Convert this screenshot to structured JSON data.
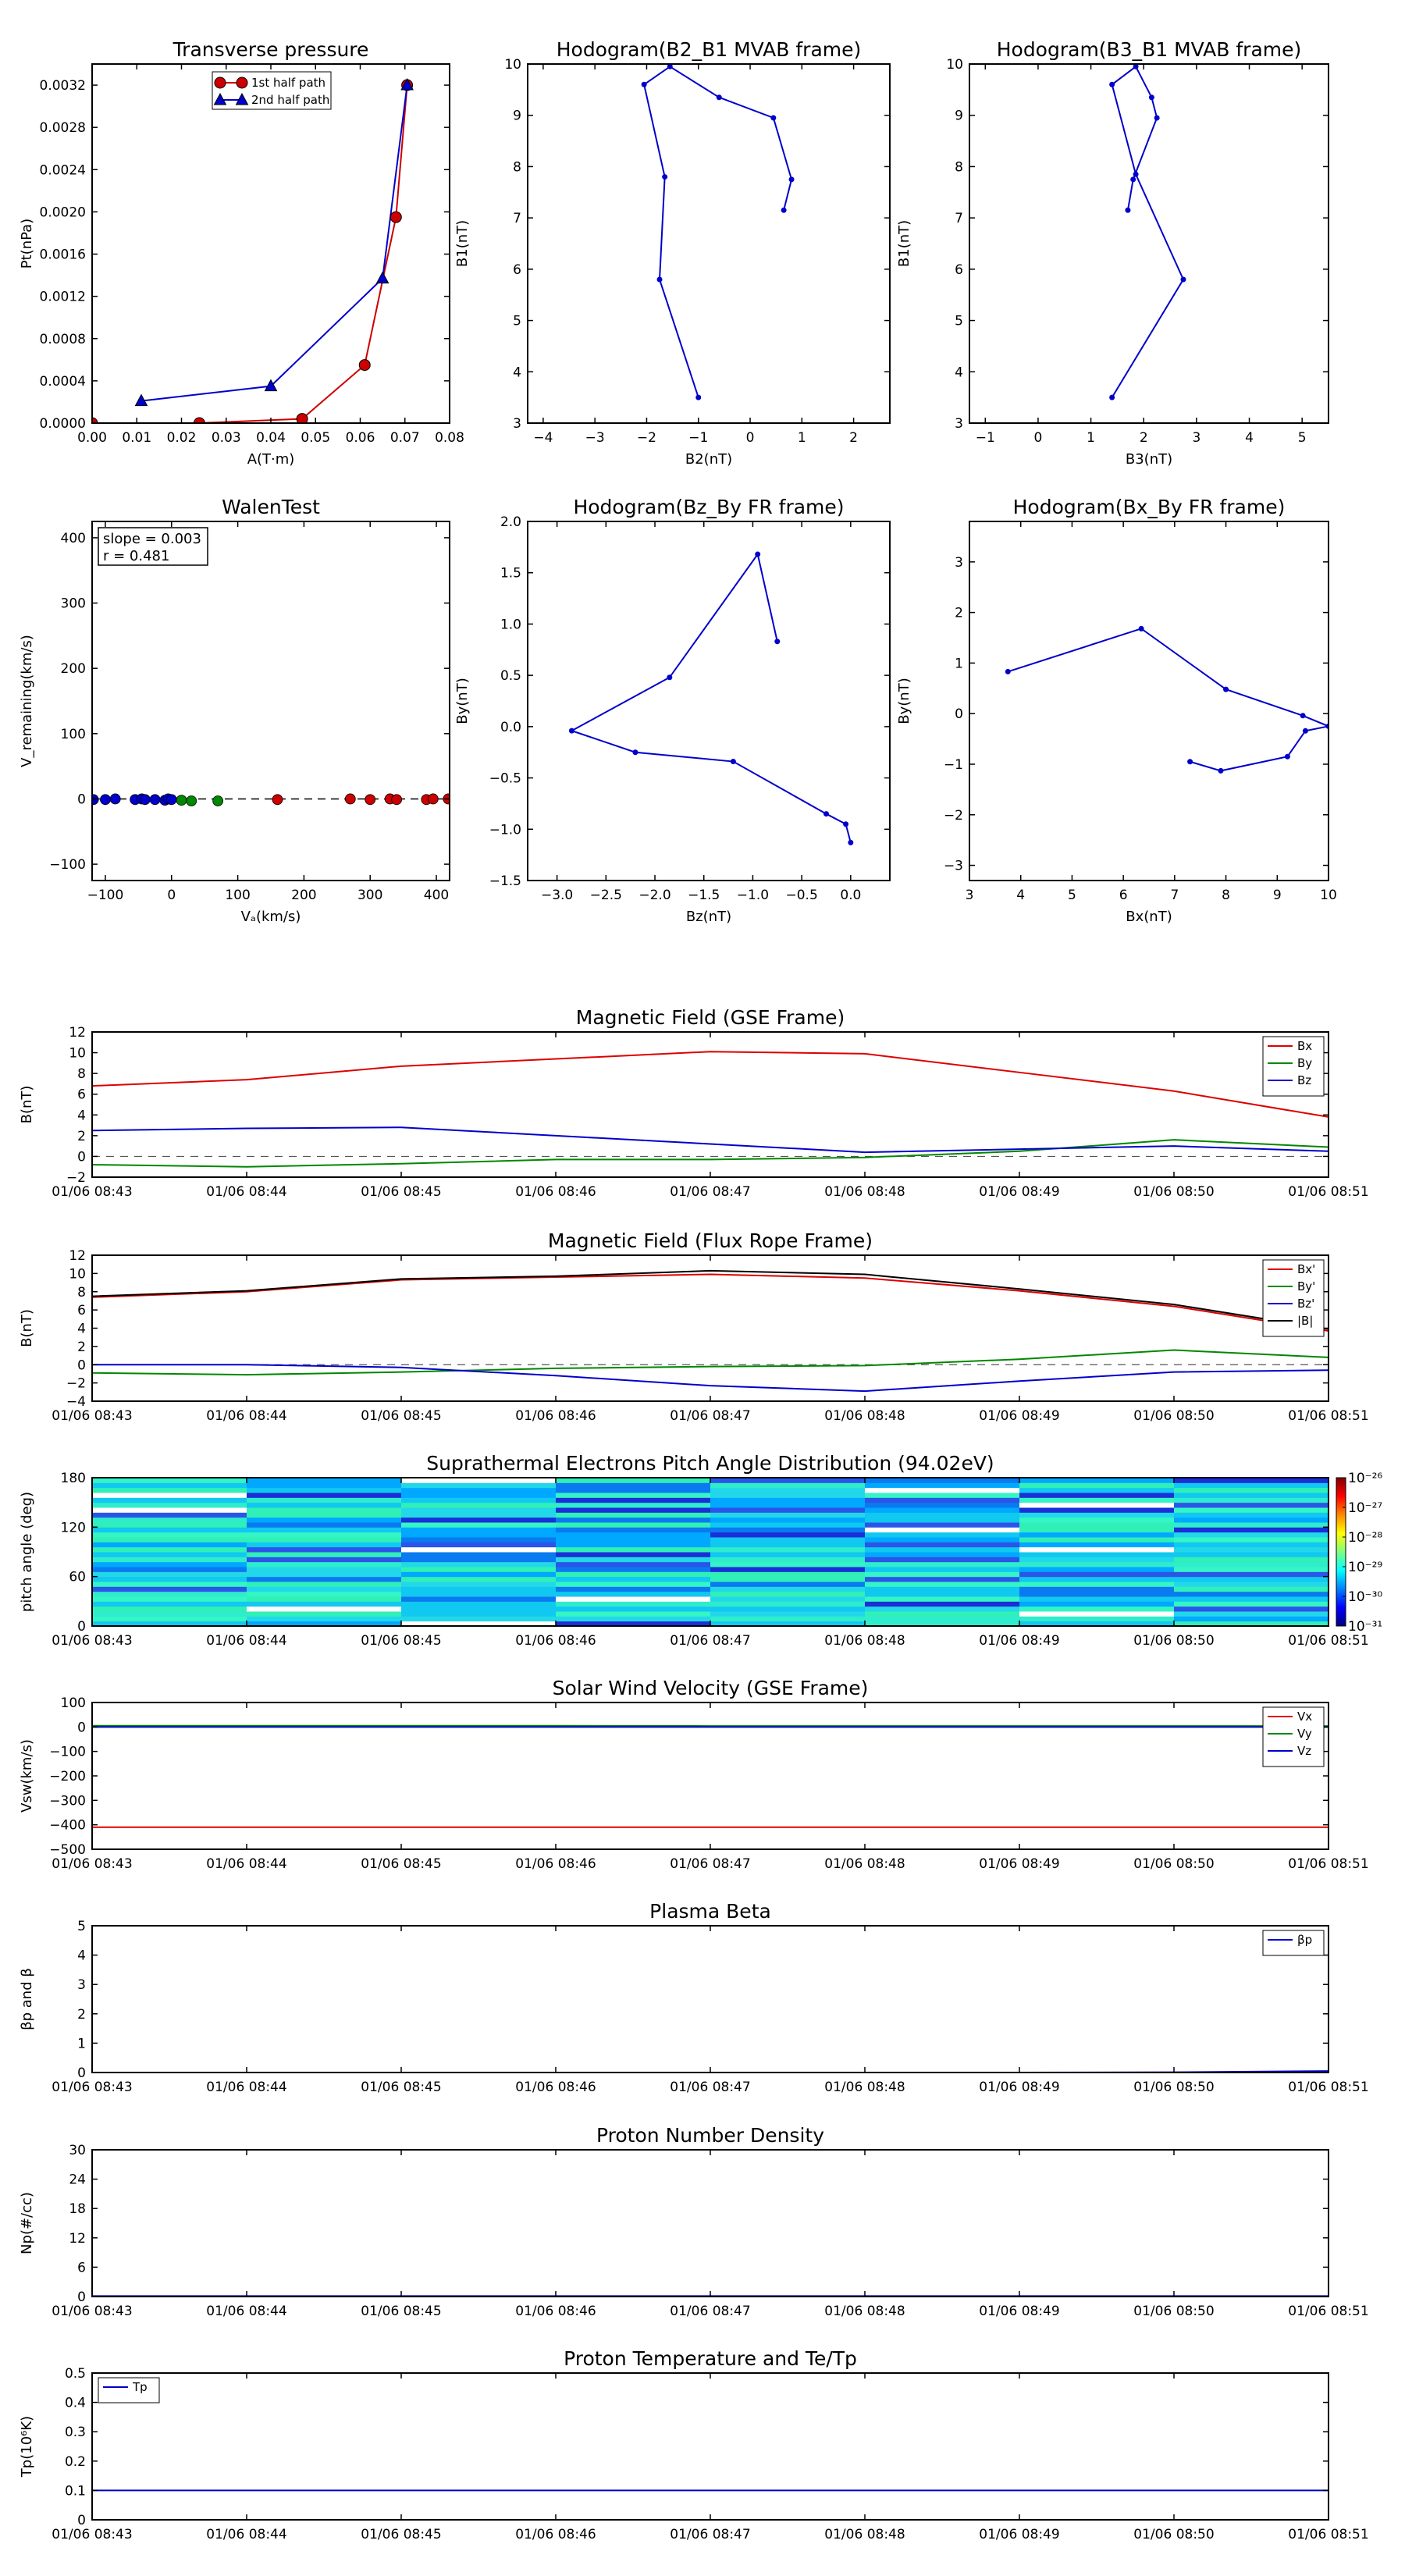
{
  "chart_data": [
    {
      "id": "transverse-pressure",
      "type": "line",
      "title": "Transverse pressure",
      "xlabel": "A(T·m)",
      "ylabel": "Pt(nPa)",
      "xlim": [
        0,
        0.08
      ],
      "ylim": [
        0,
        0.0034
      ],
      "xticks": [
        0,
        0.01,
        0.02,
        0.03,
        0.04,
        0.05,
        0.06,
        0.07,
        0.08
      ],
      "xtick_labels": [
        "0.00",
        "0.01",
        "0.02",
        "0.03",
        "0.04",
        "0.05",
        "0.06",
        "0.07",
        "0.08"
      ],
      "yticks": [
        0,
        0.0004,
        0.0008,
        0.0012,
        0.0016,
        0.002,
        0.0024,
        0.0028,
        0.0032
      ],
      "ytick_labels": [
        "0.0000",
        "0.0004",
        "0.0008",
        "0.0012",
        "0.0016",
        "0.0020",
        "0.0024",
        "0.0028",
        "0.0032"
      ],
      "legend": "top-center",
      "series": [
        {
          "name": "1st half path",
          "color": "#cc0000",
          "marker": "circle",
          "x": [
            0.0,
            0.024,
            0.047,
            0.061,
            0.068,
            0.0705
          ],
          "y": [
            0.0,
            0.0,
            4e-05,
            0.00055,
            0.00195,
            0.0032
          ]
        },
        {
          "name": "2nd half path",
          "color": "#0000cc",
          "marker": "triangle",
          "x": [
            0.011,
            0.04,
            0.065,
            0.0705
          ],
          "y": [
            0.00021,
            0.00035,
            0.00137,
            0.0032
          ]
        }
      ]
    },
    {
      "id": "hodogram-b2-b1",
      "type": "line",
      "title": "Hodogram(B2_B1 MVAB frame)",
      "xlabel": "B2(nT)",
      "ylabel": "B1(nT)",
      "xlim": [
        -4.3,
        2.7
      ],
      "ylim": [
        3,
        10
      ],
      "xticks": [
        -4,
        -3,
        -2,
        -1,
        0,
        1,
        2
      ],
      "xtick_labels": [
        "−4",
        "−3",
        "−2",
        "−1",
        "0",
        "1",
        "2"
      ],
      "yticks": [
        3,
        4,
        5,
        6,
        7,
        8,
        9,
        10
      ],
      "ytick_labels": [
        "3",
        "4",
        "5",
        "6",
        "7",
        "8",
        "9",
        "10"
      ],
      "series": [
        {
          "color": "#0000cc",
          "marker": "dot",
          "x": [
            -1.0,
            -1.75,
            -1.65,
            -2.05,
            -1.55,
            -0.6,
            0.45,
            0.8,
            0.65
          ],
          "y": [
            3.5,
            5.8,
            7.8,
            9.6,
            9.95,
            9.35,
            8.95,
            7.75,
            7.15
          ]
        }
      ]
    },
    {
      "id": "hodogram-b3-b1",
      "type": "line",
      "title": "Hodogram(B3_B1 MVAB frame)",
      "xlabel": "B3(nT)",
      "ylabel": "B1(nT)",
      "xlim": [
        -1.3,
        5.5
      ],
      "ylim": [
        3,
        10
      ],
      "xticks": [
        -1,
        0,
        1,
        2,
        3,
        4,
        5
      ],
      "xtick_labels": [
        "−1",
        "0",
        "1",
        "2",
        "3",
        "4",
        "5"
      ],
      "yticks": [
        3,
        4,
        5,
        6,
        7,
        8,
        9,
        10
      ],
      "ytick_labels": [
        "3",
        "4",
        "5",
        "6",
        "7",
        "8",
        "9",
        "10"
      ],
      "series": [
        {
          "color": "#0000cc",
          "marker": "dot",
          "x": [
            1.4,
            2.75,
            1.85,
            1.4,
            1.85,
            2.15,
            2.25,
            1.8,
            1.7
          ],
          "y": [
            3.5,
            5.8,
            7.85,
            9.6,
            9.95,
            9.35,
            8.95,
            7.75,
            7.15
          ]
        }
      ]
    },
    {
      "id": "walen-test",
      "type": "scatter",
      "title": "WalenTest",
      "xlabel": "Vₐ(km/s)",
      "ylabel": "V_remaining(km/s)",
      "xlim": [
        -120,
        420
      ],
      "ylim": [
        -125,
        425
      ],
      "xticks": [
        -100,
        0,
        100,
        200,
        300,
        400
      ],
      "xtick_labels": [
        "−100",
        "0",
        "100",
        "200",
        "300",
        "400"
      ],
      "yticks": [
        -100,
        0,
        100,
        200,
        300,
        400
      ],
      "ytick_labels": [
        "−100",
        "0",
        "100",
        "200",
        "300",
        "400"
      ],
      "annotation": {
        "line1": "slope = 0.003",
        "line2": "r = 0.481"
      },
      "fit_line": {
        "x": [
          -120,
          420
        ],
        "y": [
          0,
          0
        ]
      },
      "series": [
        {
          "color": "#0000cc",
          "x": [
            -118,
            -100,
            -85,
            -55,
            -45,
            -40,
            -25,
            -10,
            -5,
            0
          ],
          "y": [
            -1,
            -1,
            0,
            -1,
            0,
            -1,
            -1,
            -2,
            0,
            -1
          ]
        },
        {
          "color": "#008800",
          "x": [
            15,
            30,
            70
          ],
          "y": [
            -2,
            -3,
            -3
          ]
        },
        {
          "color": "#cc0000",
          "x": [
            160,
            270,
            300,
            330,
            340,
            385,
            395,
            418
          ],
          "y": [
            -1,
            0,
            -1,
            0,
            -1,
            -1,
            0,
            0
          ]
        }
      ]
    },
    {
      "id": "hodogram-bz-by",
      "type": "line",
      "title": "Hodogram(Bz_By FR frame)",
      "xlabel": "Bz(nT)",
      "ylabel": "By(nT)",
      "xlim": [
        -3.3,
        0.4
      ],
      "ylim": [
        -1.5,
        2.0
      ],
      "xticks": [
        -3.0,
        -2.5,
        -2.0,
        -1.5,
        -1.0,
        -0.5,
        0.0
      ],
      "xtick_labels": [
        "−3.0",
        "−2.5",
        "−2.0",
        "−1.5",
        "−1.0",
        "−0.5",
        "0.0"
      ],
      "yticks": [
        -1.5,
        -1.0,
        -0.5,
        0.0,
        0.5,
        1.0,
        1.5,
        2.0
      ],
      "ytick_labels": [
        "−1.5",
        "−1.0",
        "−0.5",
        "0.0",
        "0.5",
        "1.0",
        "1.5",
        "2.0"
      ],
      "series": [
        {
          "color": "#0000cc",
          "marker": "dot",
          "x": [
            -0.75,
            -0.95,
            -1.85,
            -2.85,
            -2.2,
            -1.2,
            -0.25,
            -0.05,
            0.0
          ],
          "y": [
            0.83,
            1.68,
            0.48,
            -0.04,
            -0.25,
            -0.34,
            -0.85,
            -0.95,
            -1.13
          ]
        }
      ]
    },
    {
      "id": "hodogram-bx-by",
      "type": "line",
      "title": "Hodogram(Bx_By FR frame)",
      "xlabel": "Bx(nT)",
      "ylabel": "By(nT)",
      "xlim": [
        3,
        10
      ],
      "ylim": [
        -3.3,
        3.8
      ],
      "xticks": [
        3,
        4,
        5,
        6,
        7,
        8,
        9,
        10
      ],
      "xtick_labels": [
        "3",
        "4",
        "5",
        "6",
        "7",
        "8",
        "9",
        "10"
      ],
      "yticks": [
        -3,
        -2,
        -1,
        0,
        1,
        2,
        3
      ],
      "ytick_labels": [
        "−3",
        "−2",
        "−1",
        "0",
        "1",
        "2",
        "3"
      ],
      "series": [
        {
          "color": "#0000cc",
          "marker": "dot",
          "x": [
            3.75,
            6.35,
            8.0,
            9.5,
            10.0,
            9.55,
            9.2,
            7.9,
            7.3
          ],
          "y": [
            0.83,
            1.68,
            0.48,
            -0.04,
            -0.25,
            -0.34,
            -0.85,
            -1.13,
            -0.95
          ]
        }
      ]
    },
    {
      "id": "magnetic-field-gse",
      "type": "line",
      "title": "Magnetic Field (GSE Frame)",
      "ylabel": "B(nT)",
      "xlabel": "",
      "x": [
        "01/06 08:43",
        "01/06 08:44",
        "01/06 08:45",
        "01/06 08:46",
        "01/06 08:47",
        "01/06 08:48",
        "01/06 08:49",
        "01/06 08:50",
        "01/06 08:51"
      ],
      "ylim": [
        -2,
        12
      ],
      "yticks": [
        -2,
        0,
        2,
        4,
        6,
        8,
        10,
        12
      ],
      "ytick_labels": [
        "−2",
        "0",
        "2",
        "4",
        "6",
        "8",
        "10",
        "12"
      ],
      "zero_line": true,
      "legend": "top-right",
      "series": [
        {
          "name": "Bx",
          "color": "#dd0000",
          "values": [
            6.8,
            7.4,
            8.7,
            9.4,
            10.1,
            9.9,
            8.1,
            6.3,
            3.8
          ]
        },
        {
          "name": "By",
          "color": "#008800",
          "values": [
            -0.8,
            -1.0,
            -0.7,
            -0.3,
            -0.3,
            -0.1,
            0.5,
            1.6,
            0.9
          ]
        },
        {
          "name": "Bz",
          "color": "#0000cc",
          "values": [
            2.5,
            2.7,
            2.8,
            2.0,
            1.2,
            0.4,
            0.7,
            1.0,
            0.5
          ]
        }
      ]
    },
    {
      "id": "magnetic-field-fr",
      "type": "line",
      "title": "Magnetic Field (Flux Rope Frame)",
      "ylabel": "B(nT)",
      "xlabel": "",
      "x": [
        "01/06 08:43",
        "01/06 08:44",
        "01/06 08:45",
        "01/06 08:46",
        "01/06 08:47",
        "01/06 08:48",
        "01/06 08:49",
        "01/06 08:50",
        "01/06 08:51"
      ],
      "ylim": [
        -4,
        12
      ],
      "yticks": [
        -4,
        -2,
        0,
        2,
        4,
        6,
        8,
        10,
        12
      ],
      "ytick_labels": [
        "−4",
        "−2",
        "0",
        "2",
        "4",
        "6",
        "8",
        "10",
        "12"
      ],
      "zero_line": true,
      "legend": "top-right",
      "series": [
        {
          "name": "Bx'",
          "color": "#dd0000",
          "values": [
            7.4,
            8.0,
            9.3,
            9.6,
            9.9,
            9.5,
            8.1,
            6.4,
            3.7
          ]
        },
        {
          "name": "By'",
          "color": "#008800",
          "values": [
            -0.9,
            -1.1,
            -0.8,
            -0.4,
            -0.2,
            -0.1,
            0.6,
            1.6,
            0.8
          ]
        },
        {
          "name": "Bz'",
          "color": "#0000cc",
          "values": [
            0.0,
            0.0,
            -0.3,
            -1.2,
            -2.3,
            -2.9,
            -1.8,
            -0.8,
            -0.6
          ]
        },
        {
          "name": "|B|",
          "color": "#000000",
          "values": [
            7.5,
            8.1,
            9.4,
            9.7,
            10.3,
            9.9,
            8.3,
            6.6,
            3.9
          ]
        }
      ]
    },
    {
      "id": "pitch-angle",
      "type": "heatmap",
      "title": "Suprathermal Electrons Pitch Angle Distribution (94.02eV)",
      "ylabel": "pitch angle (deg)",
      "xlabel": "",
      "x": [
        "01/06 08:43",
        "01/06 08:44",
        "01/06 08:45",
        "01/06 08:46",
        "01/06 08:47",
        "01/06 08:48",
        "01/06 08:49",
        "01/06 08:50",
        "01/06 08:51"
      ],
      "ylim": [
        0,
        180
      ],
      "yticks": [
        0,
        60,
        120,
        180
      ],
      "ytick_labels": [
        "0",
        "60",
        "120",
        "180"
      ],
      "colorbar_labels": [
        "10⁻²⁶",
        "10⁻²⁷",
        "10⁻²⁸",
        "10⁻²⁹",
        "10⁻³⁰",
        "10⁻³¹"
      ],
      "colorbar_colors": [
        "#800000",
        "#ff0000",
        "#ff8800",
        "#ffff00",
        "#80ff80",
        "#00ffff",
        "#0080ff",
        "#0000ff",
        "#000080"
      ]
    },
    {
      "id": "solar-wind-velocity",
      "type": "line",
      "title": "Solar Wind Velocity (GSE Frame)",
      "ylabel": "Vsw(km/s)",
      "xlabel": "",
      "x": [
        "01/06 08:43",
        "01/06 08:44",
        "01/06 08:45",
        "01/06 08:46",
        "01/06 08:47",
        "01/06 08:48",
        "01/06 08:49",
        "01/06 08:50",
        "01/06 08:51"
      ],
      "ylim": [
        -500,
        100
      ],
      "yticks": [
        -500,
        -400,
        -300,
        -200,
        -100,
        0,
        100
      ],
      "ytick_labels": [
        "−500",
        "−400",
        "−300",
        "−200",
        "−100",
        "0",
        "100"
      ],
      "legend": "top-right",
      "series": [
        {
          "name": "Vx",
          "color": "#dd0000",
          "values": [
            -410,
            -410,
            -410,
            -410,
            -410,
            -410,
            -410,
            -410,
            -410
          ]
        },
        {
          "name": "Vy",
          "color": "#008800",
          "values": [
            5,
            5,
            5,
            5,
            4,
            4,
            4,
            4,
            4
          ]
        },
        {
          "name": "Vz",
          "color": "#0000cc",
          "values": [
            0,
            0,
            0,
            0,
            0,
            0,
            0,
            0,
            0
          ]
        }
      ]
    },
    {
      "id": "plasma-beta",
      "type": "line",
      "title": "Plasma Beta",
      "ylabel": "βp and β",
      "xlabel": "",
      "x": [
        "01/06 08:43",
        "01/06 08:44",
        "01/06 08:45",
        "01/06 08:46",
        "01/06 08:47",
        "01/06 08:48",
        "01/06 08:49",
        "01/06 08:50",
        "01/06 08:51"
      ],
      "ylim": [
        0,
        5
      ],
      "yticks": [
        0,
        1,
        2,
        3,
        4,
        5
      ],
      "ytick_labels": [
        "0",
        "1",
        "2",
        "3",
        "4",
        "5"
      ],
      "legend": "top-right",
      "series": [
        {
          "name": "βp",
          "color": "#0000cc",
          "values": [
            0,
            0,
            0,
            0,
            0,
            0,
            0,
            0.01,
            0.05
          ]
        }
      ]
    },
    {
      "id": "proton-density",
      "type": "line",
      "title": "Proton Number Density",
      "ylabel": "Np(#/cc)",
      "xlabel": "",
      "x": [
        "01/06 08:43",
        "01/06 08:44",
        "01/06 08:45",
        "01/06 08:46",
        "01/06 08:47",
        "01/06 08:48",
        "01/06 08:49",
        "01/06 08:50",
        "01/06 08:51"
      ],
      "ylim": [
        0,
        30
      ],
      "yticks": [
        0,
        6,
        12,
        18,
        24,
        30
      ],
      "ytick_labels": [
        "0",
        "6",
        "12",
        "18",
        "24",
        "30"
      ],
      "series": [
        {
          "color": "#0000cc",
          "values": [
            0.1,
            0.1,
            0.1,
            0.1,
            0.1,
            0.1,
            0.1,
            0.1,
            0.1
          ]
        }
      ]
    },
    {
      "id": "proton-temperature",
      "type": "line",
      "title": "Proton Temperature and Te/Tp",
      "ylabel": "Tp(10⁶K)",
      "xlabel": "",
      "x": [
        "01/06 08:43",
        "01/06 08:44",
        "01/06 08:45",
        "01/06 08:46",
        "01/06 08:47",
        "01/06 08:48",
        "01/06 08:49",
        "01/06 08:50",
        "01/06 08:51"
      ],
      "ylim": [
        0,
        0.5
      ],
      "yticks": [
        0,
        0.1,
        0.2,
        0.3,
        0.4,
        0.5
      ],
      "ytick_labels": [
        "0",
        "0.1",
        "0.2",
        "0.3",
        "0.4",
        "0.5"
      ],
      "legend": "top-left",
      "series": [
        {
          "name": "Tp",
          "color": "#0000cc",
          "values": [
            0.1,
            0.1,
            0.1,
            0.1,
            0.1,
            0.1,
            0.1,
            0.1,
            0.1
          ]
        }
      ]
    }
  ]
}
